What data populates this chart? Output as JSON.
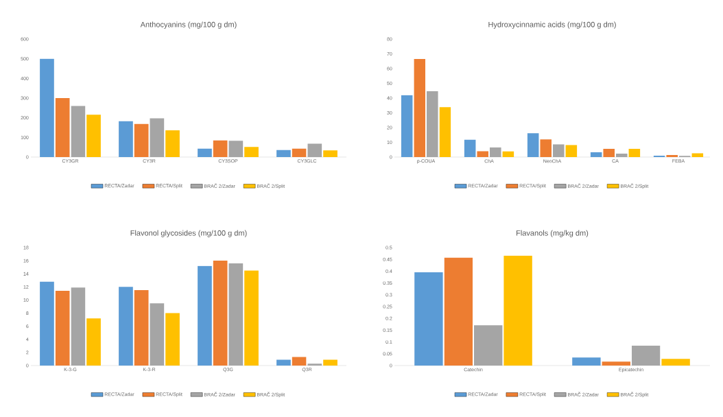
{
  "chart_data": [
    {
      "type": "bar",
      "title": "Anthocyanins (mg/100 g dm)",
      "categories": [
        "CY3GR",
        "CY3R",
        "CY3SOP",
        "CY3GLC"
      ],
      "ylim": [
        0,
        600
      ],
      "yticks": [
        0,
        100,
        200,
        300,
        400,
        500,
        600
      ],
      "legend": "bottom",
      "series": [
        {
          "name": "RECTA/Zadar",
          "color": "#5b9bd5",
          "values": [
            500,
            182,
            43,
            36
          ]
        },
        {
          "name": "RECTA/Split",
          "color": "#ed7d31",
          "values": [
            300,
            168,
            85,
            43
          ]
        },
        {
          "name": "BRAČ 2/Zadar",
          "color": "#a5a5a5",
          "values": [
            260,
            197,
            83,
            68
          ]
        },
        {
          "name": "BRAČ 2/Split",
          "color": "#ffc000",
          "values": [
            215,
            136,
            51,
            34
          ]
        }
      ]
    },
    {
      "type": "bar",
      "title": "Hydroxycinnamic acids (mg/100 g dm)",
      "categories": [
        "p-COUA",
        "ChA",
        "NeoChA",
        "CA",
        "FEBA"
      ],
      "ylim": [
        0,
        80
      ],
      "yticks": [
        0,
        10,
        20,
        30,
        40,
        50,
        60,
        70,
        80
      ],
      "legend": "bottom",
      "series": [
        {
          "name": "RECTA/Zadar",
          "color": "#5b9bd5",
          "values": [
            42,
            11.7,
            16.2,
            3.3,
            0.9
          ]
        },
        {
          "name": "RECTA/Split",
          "color": "#ed7d31",
          "values": [
            66.5,
            4,
            12,
            5.6,
            1.4
          ]
        },
        {
          "name": "BRAČ 2/Zadar",
          "color": "#a5a5a5",
          "values": [
            44.7,
            6.5,
            8.6,
            2.3,
            0.8
          ]
        },
        {
          "name": "BRAČ 2/Split",
          "color": "#ffc000",
          "values": [
            33.8,
            3.8,
            8.1,
            5.6,
            2.6
          ]
        }
      ]
    },
    {
      "type": "bar",
      "title": "Flavonol glycosides (mg/100 g dm)",
      "categories": [
        "K-3-G",
        "K-3-R",
        "Q3G",
        "Q3R"
      ],
      "ylim": [
        0,
        18
      ],
      "yticks": [
        0,
        2,
        4,
        6,
        8,
        10,
        12,
        14,
        16,
        18
      ],
      "legend": "bottom",
      "series": [
        {
          "name": "RECTA/Zadar",
          "color": "#5b9bd5",
          "values": [
            12.8,
            12.0,
            15.2,
            0.9
          ]
        },
        {
          "name": "RECTA/Split",
          "color": "#ed7d31",
          "values": [
            11.4,
            11.5,
            16.0,
            1.3
          ]
        },
        {
          "name": "BRAČ 2/Zadar",
          "color": "#a5a5a5",
          "values": [
            11.9,
            9.5,
            15.6,
            0.3
          ]
        },
        {
          "name": "BRAČ 2/Split",
          "color": "#ffc000",
          "values": [
            7.2,
            8.0,
            14.5,
            0.9
          ]
        }
      ]
    },
    {
      "type": "bar",
      "title": "Flavanols (mg/kg dm)",
      "categories": [
        "Catechin",
        "Epicatechin"
      ],
      "ylim": [
        0,
        0.5
      ],
      "yticks": [
        0,
        0.05,
        0.1,
        0.15,
        0.2,
        0.25,
        0.3,
        0.35,
        0.4,
        0.45,
        0.5
      ],
      "legend": "bottom",
      "series": [
        {
          "name": "RECTA/Zadar",
          "color": "#5b9bd5",
          "values": [
            0.395,
            0.034
          ]
        },
        {
          "name": "RECTA/Split",
          "color": "#ed7d31",
          "values": [
            0.458,
            0.017
          ]
        },
        {
          "name": "BRAČ 2/Zadar",
          "color": "#a5a5a5",
          "values": [
            0.171,
            0.084
          ]
        },
        {
          "name": "BRAČ 2/Split",
          "color": "#ffc000",
          "values": [
            0.466,
            0.028
          ]
        }
      ]
    }
  ]
}
